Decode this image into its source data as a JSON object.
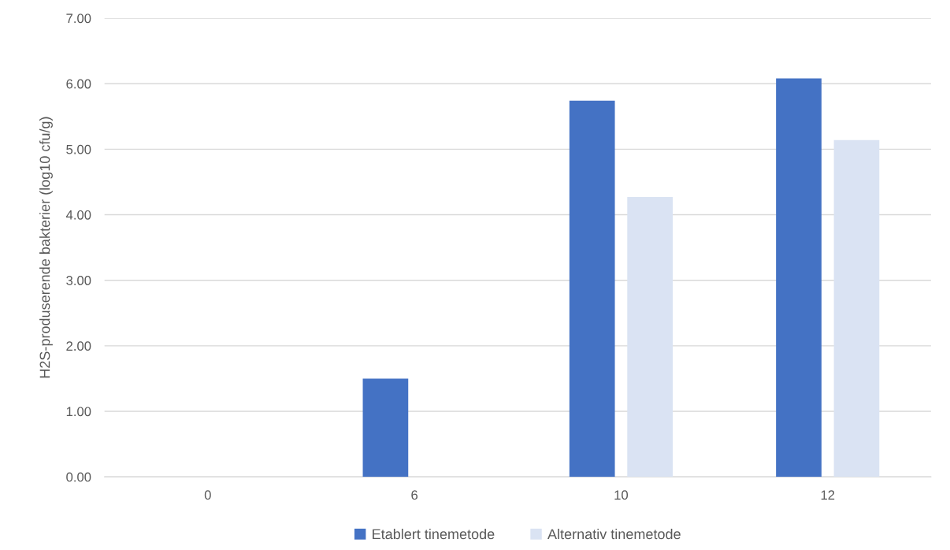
{
  "chart_data": {
    "type": "bar",
    "ylabel": "H2S-produserende bakterier (log10 cfu/g)",
    "categories": [
      "0",
      "6",
      "10",
      "12"
    ],
    "series": [
      {
        "name": "Etablert tinemetode",
        "color": "#4472c4",
        "values": [
          0,
          1.5,
          5.74,
          6.08
        ]
      },
      {
        "name": "Alternativ tinemetode",
        "color": "#dae3f3",
        "values": [
          0,
          0,
          4.27,
          5.14
        ]
      }
    ],
    "ylim": [
      0,
      7
    ],
    "yticks": [
      {
        "value": 0,
        "label": "0.00"
      },
      {
        "value": 1,
        "label": "1.00"
      },
      {
        "value": 2,
        "label": "2.00"
      },
      {
        "value": 3,
        "label": "3.00"
      },
      {
        "value": 4,
        "label": "4.00"
      },
      {
        "value": 5,
        "label": "5.00"
      },
      {
        "value": 6,
        "label": "6.00"
      },
      {
        "value": 7,
        "label": "7.00"
      }
    ],
    "grid": "y",
    "legend": "bottom"
  }
}
